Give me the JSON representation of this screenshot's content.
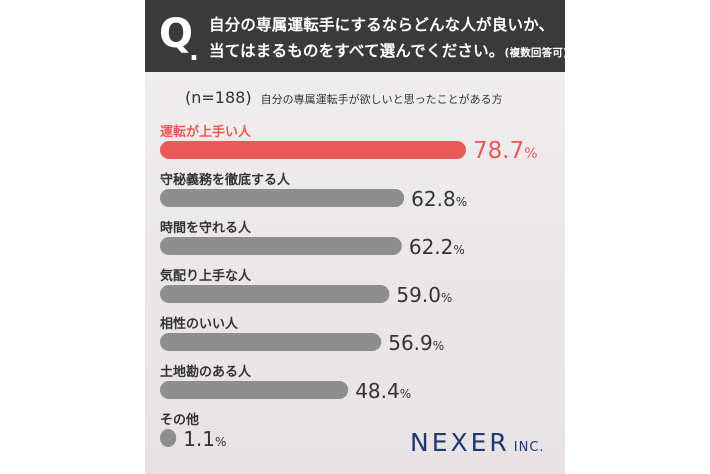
{
  "question": {
    "mark": "Q",
    "dot": ".",
    "line1": "自分の専属運転手にするならどんな人が良いか、",
    "line2": "当てはまるものをすべて選んでください。",
    "note": "(複数回答可)"
  },
  "sample": {
    "n_label": "(n=188)",
    "description": "自分の専属運転手が欲しいと思ったことがある方"
  },
  "chart_data": {
    "type": "bar",
    "orientation": "horizontal",
    "categories": [
      "運転が上手い人",
      "守秘義務を徹底する人",
      "時間を守れる人",
      "気配り上手な人",
      "相性のいい人",
      "土地勘のある人",
      "その他"
    ],
    "values": [
      78.7,
      62.8,
      62.2,
      59.0,
      56.9,
      48.4,
      1.1
    ],
    "value_labels": [
      "78.7",
      "62.8",
      "62.2",
      "59.0",
      "56.9",
      "48.4",
      "1.1"
    ],
    "unit": "%",
    "highlight_color": "#e85a5a",
    "bar_color": "#8e8e8e",
    "text_color": "#333333"
  },
  "brand": {
    "name": "NEXER",
    "suffix": "INC."
  }
}
